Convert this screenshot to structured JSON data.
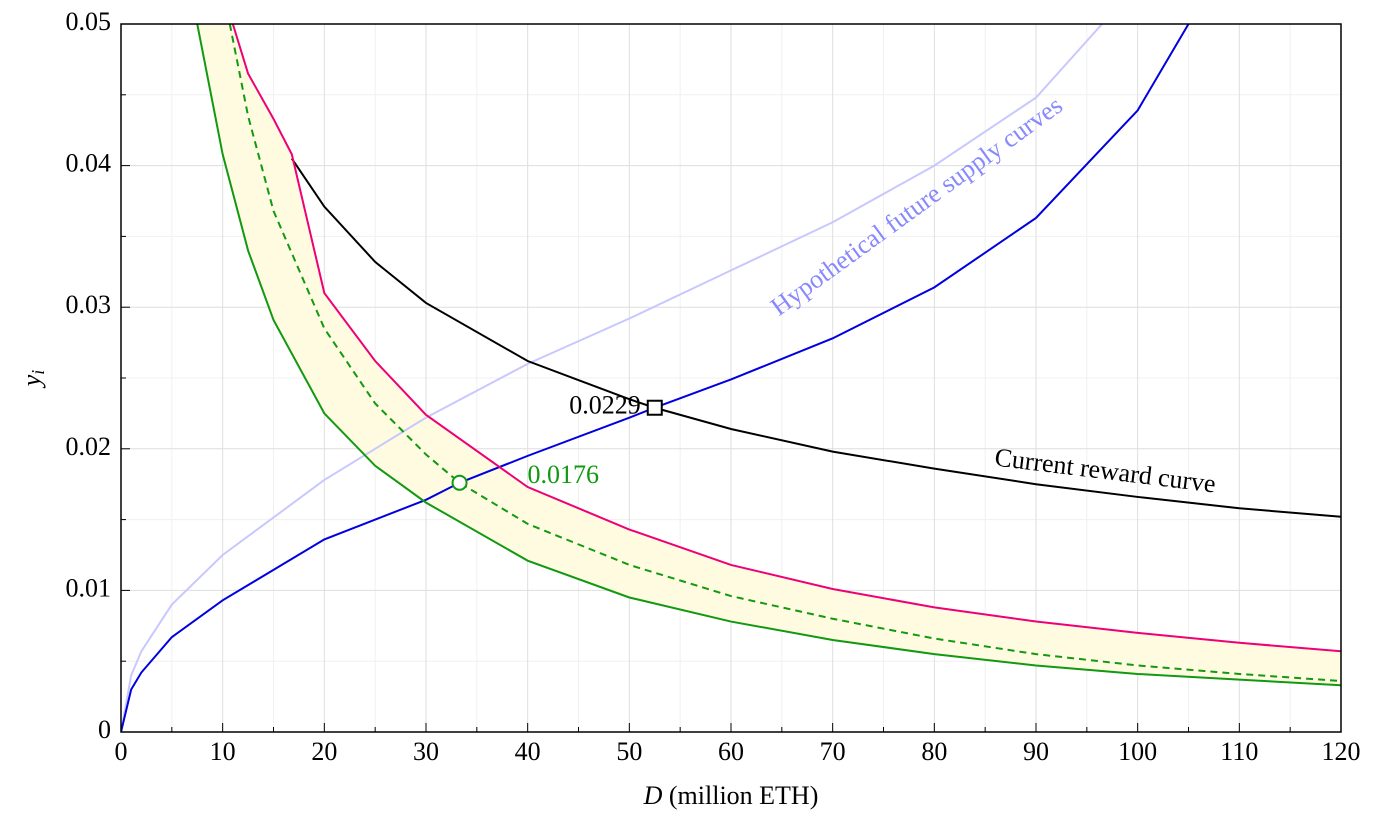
{
  "chart_data": {
    "type": "line",
    "xlabel_var": "D",
    "xlabel": "(million ETH)",
    "ylabel": "y",
    "ylabel_sub": "i",
    "xlim": [
      0,
      120
    ],
    "xticks": [
      0,
      10,
      20,
      30,
      40,
      50,
      60,
      70,
      80,
      90,
      100,
      110,
      120
    ],
    "x_minor_ticks": [
      5,
      15,
      25,
      35,
      45,
      55,
      65,
      75,
      85,
      95,
      105,
      115
    ],
    "ylim": [
      0,
      0.05
    ],
    "yticks": [
      0,
      0.01,
      0.02,
      0.03,
      0.04,
      0.05
    ],
    "y_minor_ticks": [
      0.005,
      0.015,
      0.025,
      0.035,
      0.045
    ],
    "grid": true,
    "series": [
      {
        "color": "#c8c8ff",
        "x": [
          0,
          1,
          2,
          5,
          10,
          20,
          30,
          40,
          50,
          60,
          70,
          80,
          90,
          96.5
        ],
        "values": [
          0,
          0.004,
          0.0057,
          0.009,
          0.0125,
          0.0178,
          0.0222,
          0.026,
          0.0292,
          0.0326,
          0.036,
          0.04,
          0.0448,
          0.05
        ]
      },
      {
        "color": "#0000e0",
        "x": [
          0,
          1,
          2,
          5,
          10,
          20,
          30,
          33.3,
          40,
          50,
          52.5,
          60,
          70,
          80,
          90,
          100,
          105
        ],
        "values": [
          0,
          0.003,
          0.0042,
          0.0067,
          0.0093,
          0.0136,
          0.0164,
          0.0176,
          0.0195,
          0.0222,
          0.0229,
          0.0249,
          0.0278,
          0.0314,
          0.0363,
          0.0439,
          0.05
        ]
      },
      {
        "color": "#000000",
        "x": [
          16.8,
          20,
          25,
          30,
          40,
          50,
          52.5,
          60,
          70,
          80,
          90,
          100,
          110,
          120
        ],
        "values": [
          0.0405,
          0.0371,
          0.0332,
          0.0303,
          0.0262,
          0.0235,
          0.0229,
          0.0214,
          0.0198,
          0.0186,
          0.0175,
          0.0166,
          0.0158,
          0.0152
        ]
      },
      {
        "color": "#ee0077",
        "x": [
          11,
          12.5,
          15,
          16.8,
          20,
          25,
          30,
          40,
          50,
          60,
          70,
          80,
          90,
          100,
          110,
          120
        ],
        "values": [
          0.05,
          0.0465,
          0.0433,
          0.0408,
          0.031,
          0.0262,
          0.0224,
          0.0173,
          0.0143,
          0.0118,
          0.0101,
          0.0088,
          0.0078,
          0.007,
          0.0063,
          0.0057
        ]
      },
      {
        "color": "#119911",
        "x": [
          7.5,
          10,
          12.5,
          15,
          20,
          25,
          30,
          40,
          50,
          60,
          70,
          80,
          90,
          100,
          110,
          120
        ],
        "values": [
          0.05,
          0.0408,
          0.034,
          0.0291,
          0.0225,
          0.0188,
          0.0162,
          0.0121,
          0.0095,
          0.0078,
          0.0065,
          0.0055,
          0.0047,
          0.0041,
          0.0037,
          0.0033
        ]
      },
      {
        "color": "#119911",
        "dash": true,
        "x": [
          10.7,
          12.5,
          15,
          20,
          25,
          30,
          33.3,
          40,
          50,
          60,
          70,
          80,
          90,
          100,
          110,
          120
        ],
        "values": [
          0.05,
          0.0435,
          0.0368,
          0.0285,
          0.0232,
          0.0196,
          0.0176,
          0.0147,
          0.0118,
          0.0096,
          0.008,
          0.0066,
          0.0055,
          0.0047,
          0.0041,
          0.0036
        ]
      }
    ],
    "band": {
      "color": "#fffbe0",
      "lower_series": 4,
      "upper_series": 3
    },
    "points": [
      {
        "x": 52.5,
        "y": 0.0229,
        "label": "0.0229",
        "color": "#000000",
        "shape": "square"
      },
      {
        "x": 33.3,
        "y": 0.0176,
        "label": "0.0176",
        "color": "#119911",
        "shape": "circle"
      }
    ],
    "annotations": [
      {
        "text": "Current reward curve",
        "color": "#000000"
      },
      {
        "text": "Hypothetical future supply curves",
        "color": "#8888ff"
      }
    ]
  }
}
